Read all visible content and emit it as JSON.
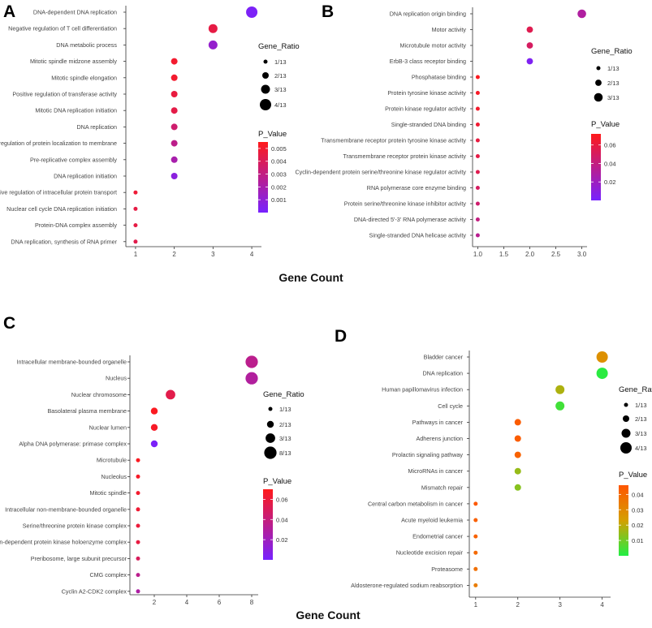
{
  "x_axis_title": "Gene Count",
  "chart_data": [
    {
      "type": "scatter",
      "panel": "A",
      "title": "",
      "xlabel": "Gene Count",
      "xlim": [
        0.75,
        4.25
      ],
      "xticks": [
        1,
        2,
        3,
        4
      ],
      "xtick_labels": [
        "1",
        "2",
        "3",
        "4"
      ],
      "size_legend": {
        "title": "Gene_Ratio",
        "labels": [
          "1/13",
          "2/13",
          "3/13",
          "4/13"
        ],
        "values": [
          1,
          2,
          3,
          4
        ]
      },
      "color_legend": {
        "title": "P_Value",
        "range": [
          0,
          0.0055
        ],
        "ticks": [
          0.001,
          0.002,
          0.003,
          0.004,
          0.005
        ],
        "tick_labels": [
          "0.001",
          "0.002",
          "0.003",
          "0.004",
          "0.005"
        ],
        "low_color": "#7722ff",
        "high_color": "#ff1a1a"
      },
      "terms": [
        {
          "label": "DNA-dependent DNA replication",
          "count": 4,
          "p": 0.0002
        },
        {
          "label": "Negative regulation of T cell differentiation",
          "count": 3,
          "p": 0.0045
        },
        {
          "label": "DNA metabolic process",
          "count": 3,
          "p": 0.0012
        },
        {
          "label": "Mitotic spindle midzone assembly",
          "count": 2,
          "p": 0.005
        },
        {
          "label": "Mitotic spindle elongation",
          "count": 2,
          "p": 0.005
        },
        {
          "label": "Positive regulation of transferase activity",
          "count": 2,
          "p": 0.0046
        },
        {
          "label": "Mitotic DNA replication initiation",
          "count": 2,
          "p": 0.0044
        },
        {
          "label": "DNA replication",
          "count": 2,
          "p": 0.0035
        },
        {
          "label": "Positive regulation of protein localization to membrane",
          "count": 2,
          "p": 0.0028
        },
        {
          "label": "Pre-replicative complex assembly",
          "count": 2,
          "p": 0.002
        },
        {
          "label": "DNA replication initiation",
          "count": 2,
          "p": 0.0008
        },
        {
          "label": "Positive regulation of intracellular protein transport",
          "count": 1,
          "p": 0.0048
        },
        {
          "label": "Nuclear cell cycle DNA replication initiation",
          "count": 1,
          "p": 0.0045
        },
        {
          "label": "Protein-DNA complex assembly",
          "count": 1,
          "p": 0.0045
        },
        {
          "label": "DNA replication, synthesis of RNA primer",
          "count": 1,
          "p": 0.0043
        }
      ]
    },
    {
      "type": "scatter",
      "panel": "B",
      "title": "",
      "xlabel": "",
      "xlim": [
        0.9,
        3.1
      ],
      "xticks": [
        1.0,
        1.5,
        2.0,
        2.5,
        3.0
      ],
      "xtick_labels": [
        "1.0",
        "1.5",
        "2.0",
        "2.5",
        "3.0"
      ],
      "size_legend": {
        "title": "Gene_Ratio",
        "labels": [
          "1/13",
          "2/13",
          "3/13"
        ],
        "values": [
          1,
          2,
          3
        ]
      },
      "color_legend": {
        "title": "P_Value",
        "range": [
          0,
          0.072
        ],
        "ticks": [
          0.02,
          0.04,
          0.06
        ],
        "tick_labels": [
          "0.02",
          "0.04",
          "0.06"
        ],
        "low_color": "#7722ff",
        "high_color": "#ff1a1a"
      },
      "terms": [
        {
          "label": "DNA replication origin binding",
          "count": 3,
          "p": 0.03
        },
        {
          "label": "Motor activity",
          "count": 2,
          "p": 0.055
        },
        {
          "label": "Microtubule motor activity",
          "count": 2,
          "p": 0.05
        },
        {
          "label": "ErbB-3 class receptor binding",
          "count": 2,
          "p": 0.004
        },
        {
          "label": "Phosphatase binding",
          "count": 1,
          "p": 0.07
        },
        {
          "label": "Protein tyrosine kinase activity",
          "count": 1,
          "p": 0.068
        },
        {
          "label": "Protein kinase regulator activity",
          "count": 1,
          "p": 0.066
        },
        {
          "label": "Single-stranded DNA binding",
          "count": 1,
          "p": 0.064
        },
        {
          "label": "Transmembrane receptor protein tyrosine kinase activity",
          "count": 1,
          "p": 0.06
        },
        {
          "label": "Transmembrane receptor protein kinase activity",
          "count": 1,
          "p": 0.058
        },
        {
          "label": "Cyclin-dependent protein serine/threonine kinase regulator activity",
          "count": 1,
          "p": 0.055
        },
        {
          "label": "RNA polymerase core enzyme binding",
          "count": 1,
          "p": 0.05
        },
        {
          "label": "Protein serine/threonine kinase inhibitor activity",
          "count": 1,
          "p": 0.046
        },
        {
          "label": "DNA-directed 5'-3' RNA polymerase activity",
          "count": 1,
          "p": 0.04
        },
        {
          "label": "Single-stranded DNA helicase activity",
          "count": 1,
          "p": 0.035
        }
      ]
    },
    {
      "type": "scatter",
      "panel": "C",
      "title": "",
      "xlabel": "Gene Count",
      "xlim": [
        0.5,
        8.4
      ],
      "xticks": [
        2,
        4,
        6,
        8
      ],
      "xtick_labels": [
        "2",
        "4",
        "6",
        "8"
      ],
      "size_legend": {
        "title": "Gene_Ratio",
        "labels": [
          "1/13",
          "2/13",
          "3/13",
          "8/13"
        ],
        "values": [
          1,
          2,
          3,
          8
        ]
      },
      "color_legend": {
        "title": "P_Value",
        "range": [
          0,
          0.07
        ],
        "ticks": [
          0.02,
          0.04,
          0.06
        ],
        "tick_labels": [
          "0.02",
          "0.04",
          "0.06"
        ],
        "low_color": "#7722ff",
        "high_color": "#ff1a1a"
      },
      "terms": [
        {
          "label": "Intracellular membrane-bounded organelle",
          "count": 8,
          "p": 0.035
        },
        {
          "label": "Nucleus",
          "count": 8,
          "p": 0.03
        },
        {
          "label": "Nuclear chromosome",
          "count": 3,
          "p": 0.055
        },
        {
          "label": "Basolateral plasma membrane",
          "count": 2,
          "p": 0.068
        },
        {
          "label": "Nuclear lumen",
          "count": 2,
          "p": 0.066
        },
        {
          "label": "Alpha DNA polymerase: primase complex",
          "count": 2,
          "p": 0.002
        },
        {
          "label": "Microtubule",
          "count": 1,
          "p": 0.068
        },
        {
          "label": "Nucleolus",
          "count": 1,
          "p": 0.066
        },
        {
          "label": "Mitotic spindle",
          "count": 1,
          "p": 0.064
        },
        {
          "label": "Intracellular non-membrane-bounded organelle",
          "count": 1,
          "p": 0.062
        },
        {
          "label": "Serine/threonine protein kinase complex",
          "count": 1,
          "p": 0.06
        },
        {
          "label": "Cyclin-dependent protein kinase holoenzyme complex",
          "count": 1,
          "p": 0.058
        },
        {
          "label": "Preribosome, large subunit precursor",
          "count": 1,
          "p": 0.05
        },
        {
          "label": "CMG complex",
          "count": 1,
          "p": 0.035
        },
        {
          "label": "Cyclin A2-CDK2 complex",
          "count": 1,
          "p": 0.028
        }
      ]
    },
    {
      "type": "scatter",
      "panel": "D",
      "title": "",
      "xlabel": "",
      "xlim": [
        0.85,
        4.2
      ],
      "xticks": [
        1,
        2,
        3,
        4
      ],
      "xtick_labels": [
        "1",
        "2",
        "3",
        "4"
      ],
      "size_legend": {
        "title": "Gene_Ratio",
        "labels": [
          "1/13",
          "2/13",
          "3/13",
          "4/13"
        ],
        "values": [
          1,
          2,
          3,
          4
        ]
      },
      "color_legend": {
        "title": "P_Value",
        "range": [
          0,
          0.046
        ],
        "ticks": [
          0.01,
          0.02,
          0.03,
          0.04
        ],
        "tick_labels": [
          "0.01",
          "0.02",
          "0.03",
          "0.04"
        ],
        "low_color": "#22ee44",
        "mid_color": "#d4a000",
        "high_color": "#ff5500"
      },
      "terms": [
        {
          "label": "Bladder cancer",
          "count": 4,
          "p": 0.028
        },
        {
          "label": "DNA replication",
          "count": 4,
          "p": 0.001
        },
        {
          "label": "Human papillomavirus infection",
          "count": 3,
          "p": 0.018
        },
        {
          "label": "Cell cycle",
          "count": 3,
          "p": 0.004
        },
        {
          "label": "Pathways in cancer",
          "count": 2,
          "p": 0.044
        },
        {
          "label": "Adherens junction",
          "count": 2,
          "p": 0.044
        },
        {
          "label": "Prolactin signaling pathway",
          "count": 2,
          "p": 0.042
        },
        {
          "label": "MicroRNAs in cancer",
          "count": 2,
          "p": 0.015
        },
        {
          "label": "Mismatch repair",
          "count": 2,
          "p": 0.013
        },
        {
          "label": "Central carbon metabolism in cancer",
          "count": 1,
          "p": 0.045
        },
        {
          "label": "Acute myeloid leukemia",
          "count": 1,
          "p": 0.043
        },
        {
          "label": "Endometrial cancer",
          "count": 1,
          "p": 0.042
        },
        {
          "label": "Nucleotide excision repair",
          "count": 1,
          "p": 0.04
        },
        {
          "label": "Proteasome",
          "count": 1,
          "p": 0.038
        },
        {
          "label": "Aldosterone-regulated sodium reabsorption",
          "count": 1,
          "p": 0.034
        }
      ]
    }
  ]
}
